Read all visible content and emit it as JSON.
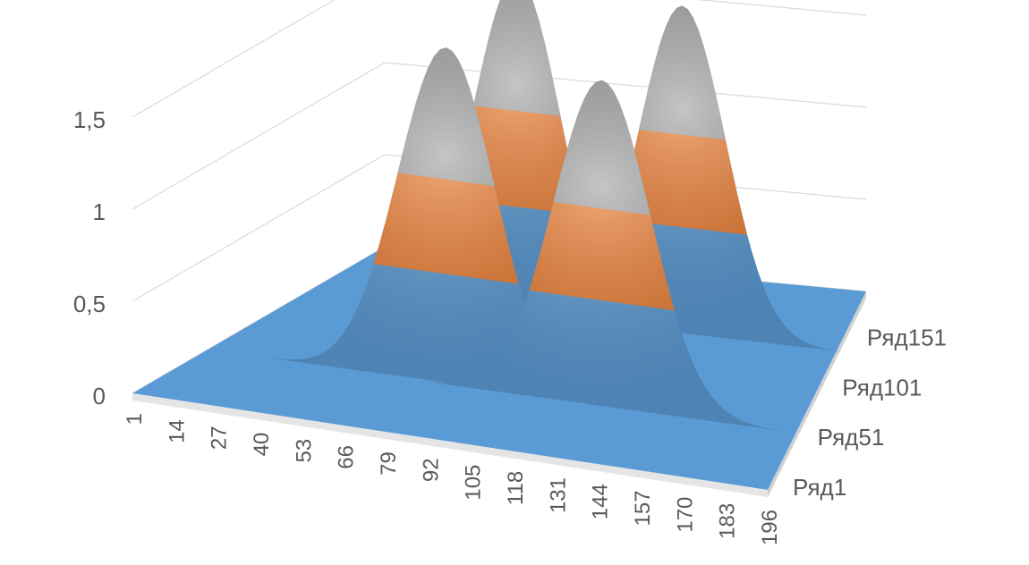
{
  "chart_data": {
    "type": "surface",
    "title": "",
    "xlabel": "",
    "ylabel": "",
    "zlabel": "",
    "z_ticks": [
      "0",
      "0,5",
      "1",
      "1,5"
    ],
    "z_range": [
      0,
      1.5
    ],
    "x_ticks": [
      "1",
      "14",
      "27",
      "40",
      "53",
      "66",
      "79",
      "92",
      "105",
      "118",
      "131",
      "144",
      "157",
      "170",
      "183",
      "196"
    ],
    "x_range": [
      1,
      196
    ],
    "series_ticks": [
      "Ряд1",
      "Ряд51",
      "Ряд101",
      "Ряд151"
    ],
    "series_range": [
      1,
      200
    ],
    "band_colors": [
      {
        "range": [
          0,
          0.5
        ],
        "color": "#5b9bd5"
      },
      {
        "range": [
          0.5,
          1.0
        ],
        "color": "#ed7d31"
      },
      {
        "range": [
          1.0,
          1.5
        ],
        "color": "#a5a5a5"
      }
    ],
    "peaks": [
      {
        "x": 80,
        "series": 60,
        "height": 1.82
      },
      {
        "x": 132,
        "series": 58,
        "height": 1.77
      },
      {
        "x": 79,
        "series": 137,
        "height": 1.85
      },
      {
        "x": 139,
        "series": 140,
        "height": 1.78
      }
    ],
    "grid": true,
    "legend": "none"
  }
}
